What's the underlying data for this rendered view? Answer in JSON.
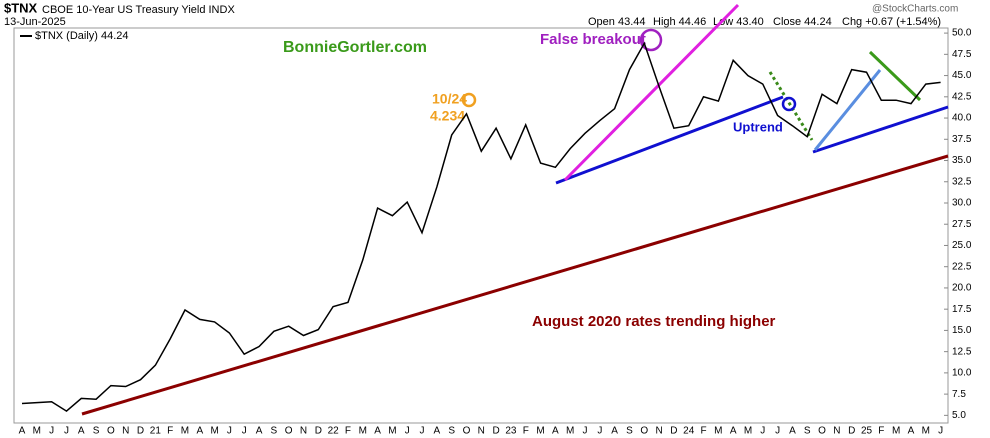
{
  "chart_data": {
    "type": "line",
    "symbol": "$TNX",
    "title": "CBOE 10-Year US Treasury Yield INDX",
    "date": "13-Jun-2025",
    "quote": [
      "Open 43.44",
      "High 44.46",
      "Low 43.40",
      "Close 44.24",
      "Chg +0.67 (+1.54%)"
    ],
    "source": "@StockCharts.com",
    "annotations": [
      "BonnieGortler.com",
      "False breakout",
      "Uptrend",
      "August 2020 rates trending higher",
      "10/24",
      "4.234"
    ],
    "categories": [
      "A",
      "M",
      "J",
      "J",
      "A",
      "S",
      "O",
      "N",
      "D",
      "21",
      "F",
      "M",
      "A",
      "M",
      "J",
      "J",
      "A",
      "S",
      "O",
      "N",
      "D",
      "22",
      "F",
      "M",
      "A",
      "M",
      "J",
      "J",
      "A",
      "S",
      "O",
      "N",
      "D",
      "23",
      "F",
      "M",
      "A",
      "M",
      "J",
      "J",
      "A",
      "S",
      "O",
      "N",
      "D",
      "24",
      "F",
      "M",
      "A",
      "M",
      "J",
      "J",
      "A",
      "S",
      "O",
      "N",
      "D",
      "25",
      "F",
      "M",
      "A",
      "M",
      "J"
    ],
    "series": [
      {
        "name": "$TNX (Daily) 44.24",
        "color": "#000000",
        "values": [
          6.4,
          6.5,
          6.6,
          5.5,
          7.0,
          6.9,
          8.5,
          8.4,
          9.2,
          10.9,
          14.0,
          17.4,
          16.3,
          16.0,
          14.7,
          12.2,
          13.1,
          14.9,
          15.5,
          14.4,
          15.1,
          17.8,
          18.3,
          23.3,
          29.4,
          28.5,
          30.1,
          26.5,
          31.9,
          38.0,
          40.5,
          36.1,
          38.8,
          35.2,
          39.2,
          34.7,
          34.2,
          36.4,
          38.2,
          39.7,
          41.1,
          45.7,
          48.8,
          43.7,
          38.8,
          39.1,
          42.5,
          42.0,
          46.8,
          45.0,
          44.0,
          40.3,
          39.1,
          37.8,
          42.8,
          41.7,
          45.7,
          45.4,
          42.1,
          42.1,
          41.7,
          44.0,
          44.2
        ]
      }
    ],
    "ylim": [
      4.1,
      50.6
    ],
    "yticks": [
      {
        "value": 5,
        "label": "5.0"
      },
      7.5,
      {
        "value": 10,
        "label": "10.0"
      },
      12.5,
      {
        "value": 15,
        "label": "15.0"
      },
      17.5,
      {
        "value": 20,
        "label": "20.0"
      },
      22.5,
      {
        "value": 25,
        "label": "25.0"
      },
      27.5,
      {
        "value": 30,
        "label": "30.0"
      },
      32.5,
      {
        "value": 35,
        "label": "35.0"
      },
      37.5,
      {
        "value": 40,
        "label": "40.0"
      },
      42.5,
      {
        "value": 45,
        "label": "45.0"
      },
      47.5,
      {
        "value": 50,
        "label": "50.0"
      }
    ],
    "grid": false
  }
}
